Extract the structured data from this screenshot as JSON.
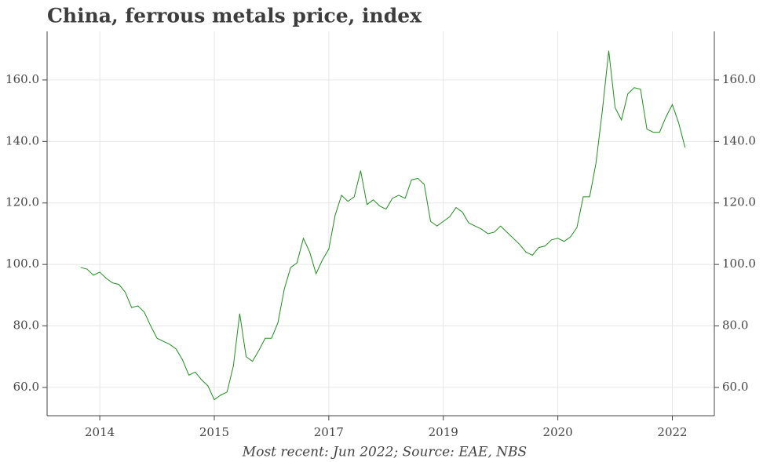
{
  "chart_data": {
    "type": "line",
    "title": "China, ferrous metals price, index",
    "caption": "Most recent: Jun 2022; Source: EAE, NBS",
    "x": [
      2013.75,
      2013.833,
      2013.917,
      2014.0,
      2014.083,
      2014.167,
      2014.25,
      2014.333,
      2014.417,
      2014.5,
      2014.583,
      2014.667,
      2014.75,
      2014.833,
      2014.917,
      2015.0,
      2015.083,
      2015.167,
      2015.25,
      2015.333,
      2015.417,
      2015.5,
      2015.583,
      2015.667,
      2015.75,
      2015.833,
      2015.917,
      2016.0,
      2016.083,
      2016.167,
      2016.25,
      2016.333,
      2016.417,
      2016.5,
      2016.583,
      2016.667,
      2016.75,
      2016.833,
      2016.917,
      2017.0,
      2017.083,
      2017.167,
      2017.25,
      2017.333,
      2017.417,
      2017.5,
      2017.583,
      2017.667,
      2017.75,
      2017.833,
      2017.917,
      2018.0,
      2018.083,
      2018.167,
      2018.25,
      2018.333,
      2018.417,
      2018.5,
      2018.583,
      2018.667,
      2018.75,
      2018.833,
      2018.917,
      2019.0,
      2019.083,
      2019.167,
      2019.25,
      2019.333,
      2019.417,
      2019.5,
      2019.583,
      2019.667,
      2019.75,
      2019.833,
      2019.917,
      2020.0,
      2020.083,
      2020.167,
      2020.25,
      2020.333,
      2020.417,
      2020.5,
      2020.583,
      2020.667,
      2020.75,
      2020.833,
      2020.917,
      2021.0,
      2021.083,
      2021.167,
      2021.25,
      2021.333,
      2021.417,
      2021.5,
      2021.583,
      2021.667
    ],
    "series": [
      {
        "name": "Ferrous metals price index",
        "color": "#1f8f1f",
        "values": [
          99,
          98.5,
          96.5,
          97.5,
          95.5,
          94,
          93.5,
          91,
          86,
          86.5,
          84.5,
          80,
          76,
          75,
          74,
          72.5,
          69,
          64,
          65,
          62.5,
          60.5,
          56,
          57.5,
          58.5,
          67,
          84,
          70,
          68.5,
          72,
          76,
          76,
          81,
          92,
          99,
          100.5,
          108.5,
          104,
          97,
          101.5,
          105,
          116,
          122.5,
          120.5,
          122,
          130.5,
          119.5,
          121,
          119,
          118,
          121.5,
          122.5,
          121.5,
          127.5,
          128,
          126,
          114,
          112.5,
          114,
          115.5,
          118.5,
          117,
          113.5,
          112.5,
          111.5,
          110,
          110.5,
          112.5,
          110.5,
          108.5,
          106.5,
          104,
          103,
          105.5,
          106,
          108,
          108.5,
          107.5,
          109,
          112,
          122,
          122,
          133,
          150,
          169.5,
          151,
          147,
          155.5,
          157.5,
          157,
          144,
          143,
          143,
          148,
          152,
          146,
          138
        ]
      }
    ],
    "xlim": [
      2013.31,
      2022.05
    ],
    "xticks": [
      {
        "value": 2014.0,
        "label": "2014"
      },
      {
        "value": 2015.5,
        "label": "2015"
      },
      {
        "value": 2017.0,
        "label": "2017"
      },
      {
        "value": 2018.5,
        "label": "2019"
      },
      {
        "value": 2020.0,
        "label": "2020"
      },
      {
        "value": 2021.5,
        "label": "2022"
      }
    ],
    "ylim": [
      50.8,
      175.8
    ],
    "yticks": [
      {
        "value": 60,
        "label": "60.0"
      },
      {
        "value": 80,
        "label": "80.0"
      },
      {
        "value": 100,
        "label": "100.0"
      },
      {
        "value": 120,
        "label": "120.0"
      },
      {
        "value": 140,
        "label": "140.0"
      },
      {
        "value": 160,
        "label": "160.0"
      }
    ],
    "grid": true
  }
}
